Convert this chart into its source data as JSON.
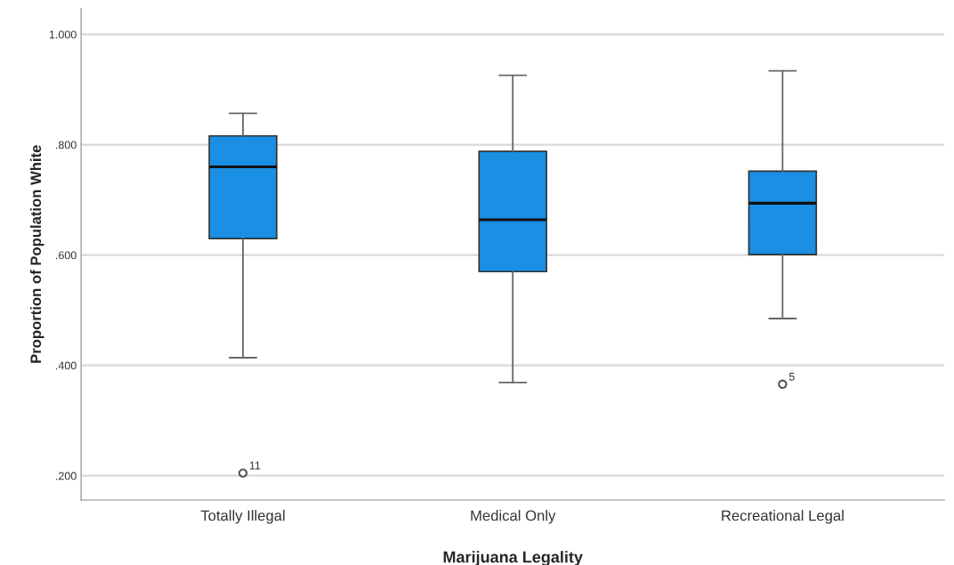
{
  "chart_data": {
    "type": "box",
    "xlabel": "Marijuana Legality",
    "ylabel": "Proportion of Population White",
    "categories": [
      "Totally Illegal",
      "Medical Only",
      "Recreational Legal"
    ],
    "boxes": [
      {
        "low": 0.414,
        "q1": 0.63,
        "median": 0.76,
        "q3": 0.816,
        "high": 0.857,
        "outliers": [
          0.205
        ]
      },
      {
        "low": 0.369,
        "q1": 0.57,
        "median": 0.664,
        "q3": 0.788,
        "high": 0.926
      },
      {
        "low": 0.485,
        "q1": 0.601,
        "median": 0.694,
        "q3": 0.752,
        "high": 0.934,
        "outliers": [
          0.366
        ]
      }
    ],
    "color": "#1a8fe3",
    "ylim": [
      0.156,
      1.047
    ],
    "yticks": [
      {
        "value": 0.2,
        "label": ".200"
      },
      {
        "value": 0.4,
        "label": ".400"
      },
      {
        "value": 0.6,
        "label": ".600"
      },
      {
        "value": 0.8,
        "label": ".800"
      },
      {
        "value": 1.0,
        "label": "1.000"
      }
    ],
    "grid": "y",
    "annotations": [
      "11",
      "5"
    ]
  }
}
